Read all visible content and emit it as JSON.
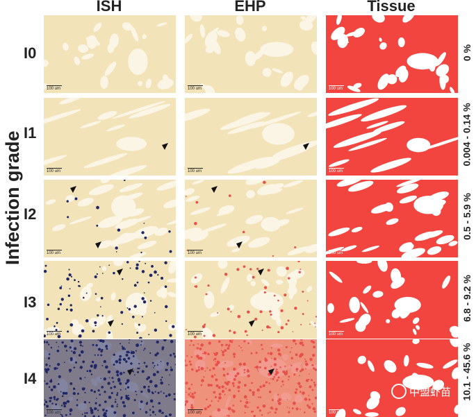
{
  "columns": [
    "ISH",
    "EHP",
    "Tissue"
  ],
  "y_axis_label": "Infection grade",
  "scale_bar_label": "100 um",
  "watermark_text": "中盟虾苗",
  "rows": [
    {
      "grade": "I0",
      "percent": "0 %"
    },
    {
      "grade": "I1",
      "percent": "0.004 - 0.14 %"
    },
    {
      "grade": "I2",
      "percent": "0.5 - 5.9 %"
    },
    {
      "grade": "I3",
      "percent": "6.8 - 9.2 %"
    },
    {
      "grade": "I4",
      "percent": "10.1 - 45.6 %"
    }
  ],
  "colors": {
    "tissue_red": "#f2453f",
    "stain_beige": "#f3e3b8",
    "ish_dark_blue": "#1f2766",
    "ehp_red": "#e9504a"
  }
}
